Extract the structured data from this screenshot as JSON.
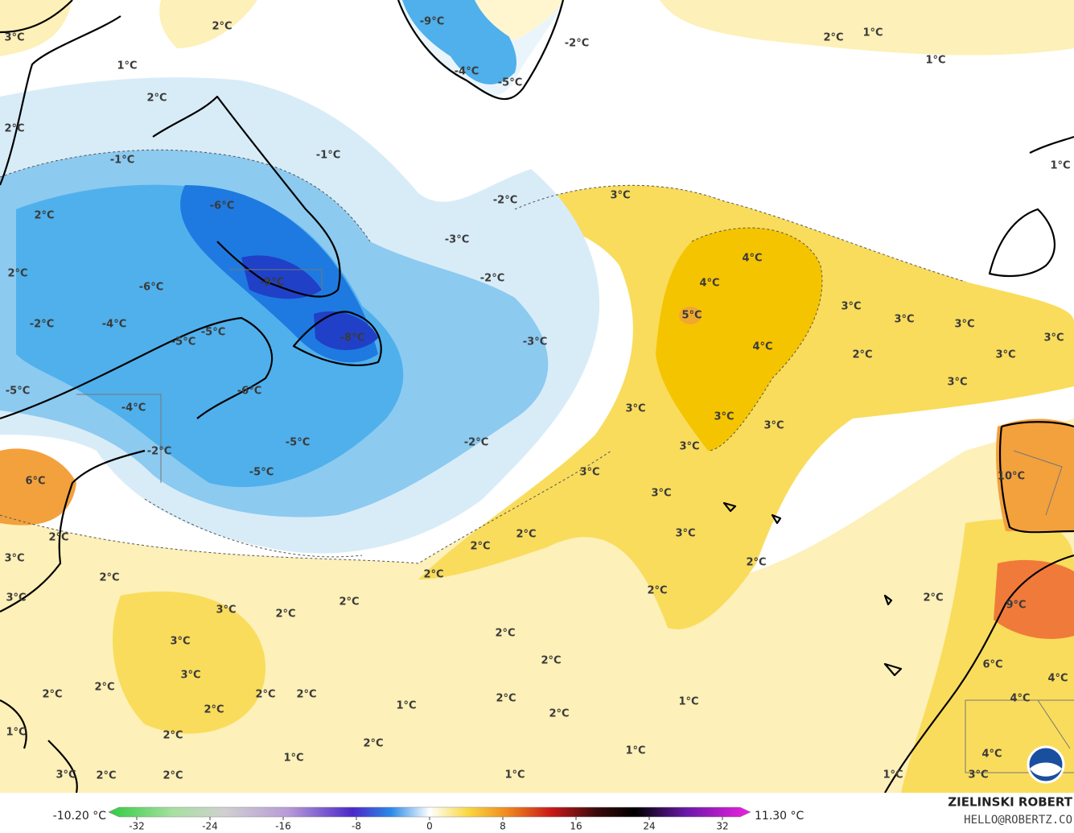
{
  "map": {
    "labels": [
      "3°C",
      "2°C",
      "1°C",
      "2°C",
      "2°C",
      "-1°C",
      "-1°C",
      "-6°C",
      "2°C",
      "-2°C",
      "-3°C",
      "2°C",
      "-9°C",
      "-6°C",
      "-2°C",
      "-2°C",
      "-4°C",
      "-5°C",
      "-5°C",
      "-8°C",
      "-3°C",
      "-6°C",
      "-5°C",
      "-4°C",
      "-5°C",
      "-2°C",
      "-2°C",
      "-5°C",
      "6°C",
      "2°C",
      "3°C",
      "2°C",
      "3°C",
      "3°C",
      "2°C",
      "2°C",
      "3°C",
      "3°C",
      "2°C",
      "2°C",
      "2°C",
      "2°C",
      "2°C",
      "2°C",
      "1°C",
      "2°C",
      "1°C",
      "2°C",
      "2°C",
      "3°C",
      "1°C",
      "2°C",
      "2°C",
      "2°C",
      "2°C",
      "2°C",
      "2°C",
      "2°C",
      "3°C",
      "3°C",
      "3°C",
      "3°C",
      "3°C",
      "3°C",
      "3°C",
      "2°C",
      "2°C",
      "1°C",
      "1°C",
      "1°C",
      "3°C",
      "4°C",
      "4°C",
      "5°C",
      "4°C",
      "3°C",
      "3°C",
      "3°C",
      "2°C",
      "3°C",
      "3°C",
      "3°C",
      "2°C",
      "-9°C",
      "-2°C",
      "-4°C",
      "-5°C",
      "2°C",
      "1°C",
      "1°C",
      "1°C",
      "10°C",
      "9°C",
      "6°C",
      "4°C",
      "4°C",
      "4°C",
      "3°C",
      "1°C"
    ]
  },
  "colorbar": {
    "ticks": [
      -32,
      -24,
      -16,
      -8,
      0,
      8,
      16,
      24,
      32
    ],
    "min_label": "-10.20 °C",
    "max_label": "11.30 °C"
  },
  "credit": {
    "name": "ZIELINSKI ROBERT",
    "email": "HELLO@ROBERTZ.CO"
  }
}
